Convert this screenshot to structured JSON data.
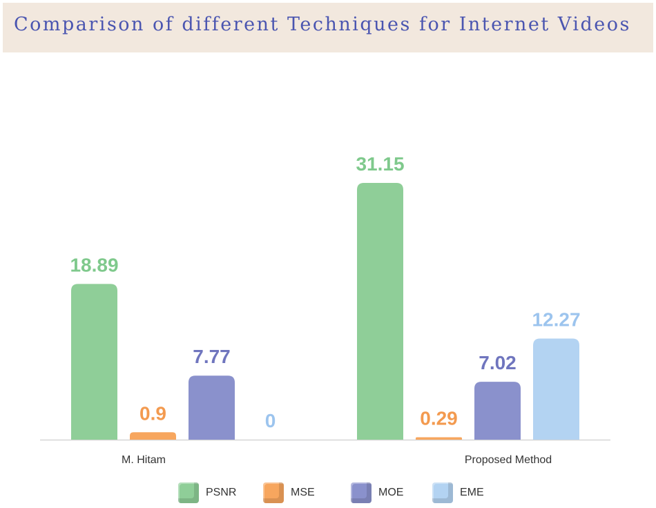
{
  "chart_data": {
    "type": "bar",
    "title": "Comparison of different Techniques for Internet Videos",
    "categories": [
      "M. Hitam",
      "Proposed Method"
    ],
    "series": [
      {
        "name": "PSNR",
        "values": [
          18.89,
          31.15
        ],
        "labels": [
          "18.89",
          "31.15"
        ],
        "color": "#8fce98"
      },
      {
        "name": "MSE",
        "values": [
          0.9,
          0.29
        ],
        "labels": [
          "0.9",
          "0.29"
        ],
        "color": "#f7a65e"
      },
      {
        "name": "MOE",
        "values": [
          7.77,
          7.02
        ],
        "labels": [
          "7.77",
          "7.02"
        ],
        "color": "#8a91cc"
      },
      {
        "name": "EME",
        "values": [
          0,
          12.27
        ],
        "labels": [
          "0",
          "12.27"
        ],
        "color": "#b3d3f2"
      }
    ],
    "label_colors": [
      "#7fc98c",
      "#f39a4f",
      "#6f75be",
      "#9cc4ee"
    ],
    "ylim": [
      0,
      31.15
    ],
    "grid": false,
    "legend": "bottom"
  }
}
